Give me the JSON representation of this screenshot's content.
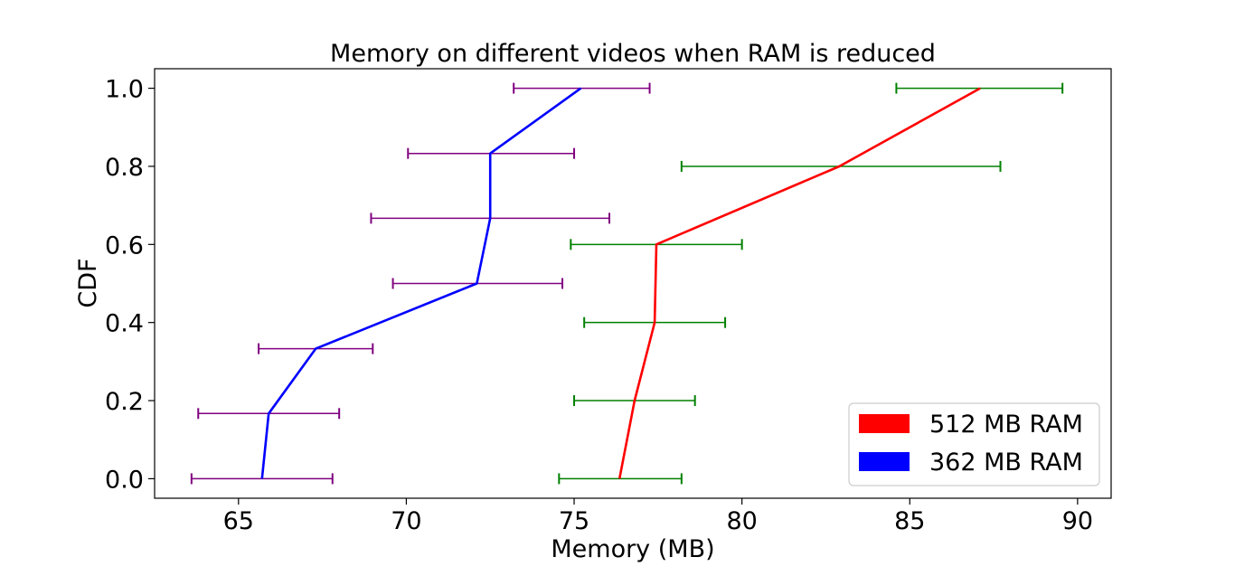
{
  "chart_data": {
    "type": "line",
    "title": "Memory on different videos when RAM is reduced",
    "xlabel": "Memory (MB)",
    "ylabel": "CDF",
    "xlim": [
      62.5,
      91
    ],
    "ylim": [
      -0.05,
      1.05
    ],
    "xticks": [
      "65",
      "70",
      "75",
      "80",
      "85",
      "90"
    ],
    "yticks": [
      "0.0",
      "0.2",
      "0.4",
      "0.6",
      "0.8",
      "1.0"
    ],
    "grid": false,
    "legend": {
      "placement": "lower-right",
      "entries": [
        {
          "label": "512 MB RAM",
          "color": "#ff0000"
        },
        {
          "label": "362 MB RAM",
          "color": "#0000ff"
        }
      ]
    },
    "series": [
      {
        "color": "#ff0000",
        "error_color": "#008000",
        "points": [
          {
            "x": 76.35,
            "y": 0.0,
            "xmin": 74.55,
            "xmax": 78.2
          },
          {
            "x": 76.8,
            "y": 0.2,
            "xmin": 75.0,
            "xmax": 78.6
          },
          {
            "x": 77.4,
            "y": 0.4,
            "xmin": 75.3,
            "xmax": 79.5
          },
          {
            "x": 77.45,
            "y": 0.6,
            "xmin": 74.9,
            "xmax": 80.0
          },
          {
            "x": 82.9,
            "y": 0.8,
            "xmin": 78.2,
            "xmax": 87.7
          },
          {
            "x": 87.1,
            "y": 1.0,
            "xmin": 84.6,
            "xmax": 89.55
          }
        ]
      },
      {
        "color": "#0000ff",
        "error_color": "#800080",
        "points": [
          {
            "x": 65.7,
            "y": 0.0,
            "xmin": 63.6,
            "xmax": 67.8
          },
          {
            "x": 65.9,
            "y": 0.167,
            "xmin": 63.8,
            "xmax": 68.0
          },
          {
            "x": 67.3,
            "y": 0.333,
            "xmin": 65.6,
            "xmax": 69.0
          },
          {
            "x": 72.1,
            "y": 0.5,
            "xmin": 69.6,
            "xmax": 74.65
          },
          {
            "x": 72.5,
            "y": 0.667,
            "xmin": 68.95,
            "xmax": 76.05
          },
          {
            "x": 72.5,
            "y": 0.833,
            "xmin": 70.05,
            "xmax": 75.0
          },
          {
            "x": 75.2,
            "y": 1.0,
            "xmin": 73.2,
            "xmax": 77.25
          }
        ]
      }
    ]
  }
}
